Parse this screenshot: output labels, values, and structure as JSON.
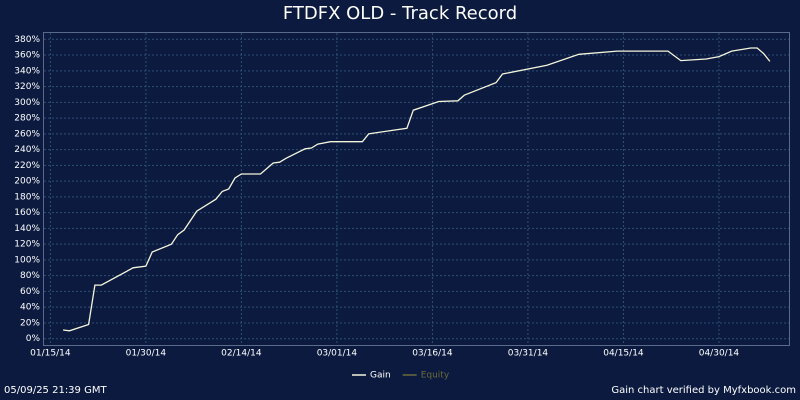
{
  "chart_data": {
    "type": "line",
    "title": "FTDFX OLD - Track Record",
    "x": [
      "01/17/14",
      "01/18/14",
      "01/21/14",
      "01/22/14",
      "01/23/14",
      "01/28/14",
      "01/30/14",
      "01/31/14",
      "02/03/14",
      "02/04/14",
      "02/05/14",
      "02/07/14",
      "02/10/14",
      "02/11/14",
      "02/12/14",
      "02/13/14",
      "02/14/14",
      "02/17/14",
      "02/19/14",
      "02/20/14",
      "02/21/14",
      "02/24/14",
      "02/25/14",
      "02/26/14",
      "02/28/14",
      "03/05/14",
      "03/06/14",
      "03/12/14",
      "03/13/14",
      "03/17/14",
      "03/20/14",
      "03/21/14",
      "03/26/14",
      "03/27/14",
      "04/03/14",
      "04/08/14",
      "04/14/14",
      "04/22/14",
      "04/24/14",
      "04/28/14",
      "04/30/14",
      "05/02/14",
      "05/05/14",
      "05/06/14",
      "05/07/14",
      "05/08/14"
    ],
    "series": [
      {
        "name": "Gain",
        "color": "#f5f5dc",
        "values": [
          11,
          10,
          18,
          68,
          68,
          90,
          92,
          110,
          120,
          132,
          138,
          162,
          177,
          187,
          190,
          204,
          209,
          209,
          223,
          224,
          229,
          241,
          242,
          247,
          250,
          250,
          260,
          267,
          290,
          301,
          302,
          309,
          325,
          336,
          347,
          361,
          365,
          365,
          353,
          355,
          358,
          365,
          369,
          369,
          362,
          352
        ]
      },
      {
        "name": "Equity",
        "color": "#6b6b3c",
        "values": [
          null,
          null,
          null,
          null,
          null,
          null,
          null,
          null,
          null,
          null,
          null,
          null,
          null,
          null,
          null,
          null,
          null,
          null,
          null,
          null,
          null,
          null,
          null,
          null,
          null,
          null,
          null,
          null,
          null,
          null,
          null,
          null,
          null,
          null,
          null,
          null,
          null,
          null,
          null,
          null,
          null,
          null,
          null,
          null,
          null,
          null
        ]
      }
    ],
    "xlim": [
      "01/14/14",
      "05/11/14"
    ],
    "xticks": [
      "01/15/14",
      "01/30/14",
      "02/14/14",
      "03/01/14",
      "03/16/14",
      "03/31/14",
      "04/15/14",
      "04/30/14"
    ],
    "ylim": [
      -8,
      388
    ],
    "yticks": [
      {
        "value": 0,
        "label": "0%"
      },
      {
        "value": 20,
        "label": "20%"
      },
      {
        "value": 40,
        "label": "40%"
      },
      {
        "value": 60,
        "label": "60%"
      },
      {
        "value": 80,
        "label": "80%"
      },
      {
        "value": 100,
        "label": "100%"
      },
      {
        "value": 120,
        "label": "120%"
      },
      {
        "value": 140,
        "label": "140%"
      },
      {
        "value": 160,
        "label": "160%"
      },
      {
        "value": 180,
        "label": "180%"
      },
      {
        "value": 200,
        "label": "200%"
      },
      {
        "value": 220,
        "label": "220%"
      },
      {
        "value": 240,
        "label": "240%"
      },
      {
        "value": 260,
        "label": "260%"
      },
      {
        "value": 280,
        "label": "280%"
      },
      {
        "value": 300,
        "label": "300%"
      },
      {
        "value": 320,
        "label": "320%"
      },
      {
        "value": 340,
        "label": "340%"
      },
      {
        "value": 360,
        "label": "360%"
      },
      {
        "value": 380,
        "label": "380%"
      }
    ],
    "grid": true,
    "timestamp": "05/09/25 21:39 GMT",
    "credit": "Gain chart verified by Myfxbook.com"
  }
}
